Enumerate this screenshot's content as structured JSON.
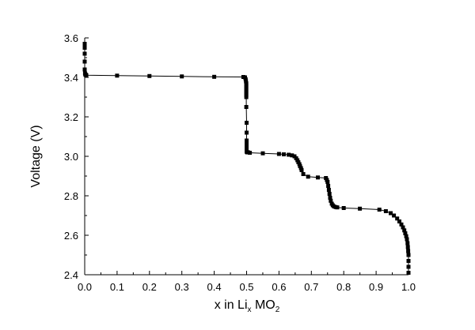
{
  "chart_data": {
    "type": "line",
    "title": "",
    "xlabel": {
      "main": "x in Li",
      "sub1": "x",
      "mid": " MO",
      "sub2": "2"
    },
    "ylabel": "Voltage (V)",
    "xlim": [
      0.0,
      1.0
    ],
    "ylim": [
      2.4,
      3.6
    ],
    "xticks": [
      "0.0",
      "0.1",
      "0.2",
      "0.3",
      "0.4",
      "0.5",
      "0.6",
      "0.7",
      "0.8",
      "0.9",
      "1.0"
    ],
    "yticks": [
      "2.4",
      "2.6",
      "2.8",
      "3.0",
      "3.2",
      "3.4",
      "3.6"
    ],
    "grid": false,
    "legend": "none",
    "series": [
      {
        "color": "#000000",
        "marker": "square",
        "x": [
          0.0,
          0.0,
          0.0,
          0.0,
          0.0,
          0.001,
          0.002,
          0.003,
          0.004,
          0.005,
          0.1,
          0.2,
          0.3,
          0.4,
          0.49,
          0.495,
          0.497,
          0.498,
          0.499,
          0.499,
          0.499,
          0.499,
          0.499,
          0.499,
          0.499,
          0.499,
          0.499,
          0.5,
          0.5,
          0.5,
          0.5,
          0.5,
          0.5,
          0.5,
          0.5,
          0.501,
          0.502,
          0.505,
          0.51,
          0.55,
          0.6,
          0.615,
          0.63,
          0.64,
          0.648,
          0.653,
          0.657,
          0.66,
          0.663,
          0.665,
          0.668,
          0.67,
          0.675,
          0.69,
          0.72,
          0.745,
          0.748,
          0.75,
          0.752,
          0.754,
          0.756,
          0.758,
          0.76,
          0.763,
          0.766,
          0.77,
          0.775,
          0.78,
          0.8,
          0.85,
          0.91,
          0.93,
          0.945,
          0.955,
          0.965,
          0.972,
          0.978,
          0.983,
          0.987,
          0.99,
          0.993,
          0.995,
          0.997,
          0.998,
          0.999,
          1.0,
          1.0,
          1.0,
          1.0
        ],
        "y": [
          3.57,
          3.55,
          3.52,
          3.48,
          3.44,
          3.42,
          3.415,
          3.413,
          3.412,
          3.411,
          3.409,
          3.407,
          3.405,
          3.403,
          3.402,
          3.4,
          3.39,
          3.38,
          3.37,
          3.36,
          3.35,
          3.34,
          3.33,
          3.32,
          3.31,
          3.3,
          3.25,
          3.17,
          3.12,
          3.08,
          3.06,
          3.05,
          3.04,
          3.03,
          3.025,
          3.022,
          3.02,
          3.02,
          3.018,
          3.015,
          3.012,
          3.01,
          3.008,
          3.005,
          3.0,
          2.99,
          2.98,
          2.97,
          2.96,
          2.95,
          2.94,
          2.93,
          2.91,
          2.897,
          2.893,
          2.89,
          2.88,
          2.87,
          2.85,
          2.83,
          2.81,
          2.79,
          2.775,
          2.76,
          2.752,
          2.746,
          2.743,
          2.741,
          2.738,
          2.735,
          2.73,
          2.722,
          2.712,
          2.7,
          2.685,
          2.67,
          2.655,
          2.64,
          2.625,
          2.61,
          2.595,
          2.58,
          2.56,
          2.54,
          2.52,
          2.5,
          2.47,
          2.44,
          2.41
        ]
      }
    ]
  }
}
